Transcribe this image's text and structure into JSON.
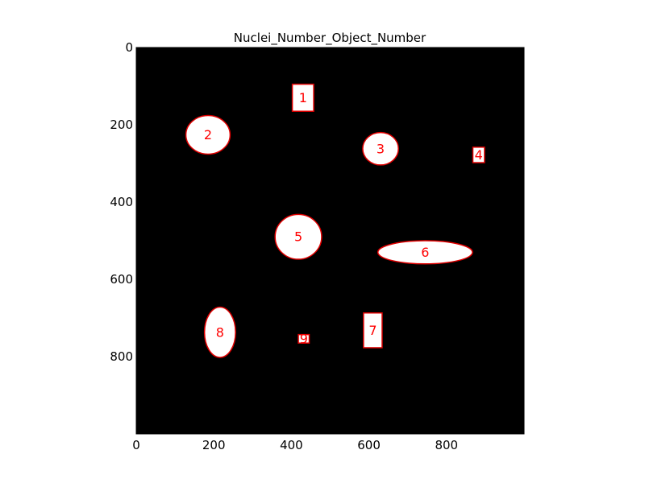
{
  "chart_data": {
    "type": "labeled-objects-image",
    "title": "Nuclei_Number_Object_Number",
    "xlim": [
      0,
      1000
    ],
    "ylim": [
      1000,
      0
    ],
    "xticks": [
      0,
      200,
      400,
      600,
      800
    ],
    "yticks": [
      0,
      200,
      400,
      600,
      800
    ],
    "grid": false,
    "background_color": "#000000",
    "object_fill": "#ffffff",
    "outline_color": "#e00000",
    "label_color": "#ff0000",
    "objects": [
      {
        "label": "1",
        "shape": "rect",
        "cx": 430,
        "cy": 130,
        "w": 55,
        "h": 70
      },
      {
        "label": "2",
        "shape": "ellipse",
        "cx": 185,
        "cy": 226,
        "rx": 57,
        "ry": 50
      },
      {
        "label": "3",
        "shape": "ellipse",
        "cx": 630,
        "cy": 262,
        "rx": 46,
        "ry": 42
      },
      {
        "label": "4",
        "shape": "rect",
        "cx": 883,
        "cy": 278,
        "w": 30,
        "h": 40
      },
      {
        "label": "5",
        "shape": "ellipse",
        "cx": 418,
        "cy": 490,
        "rx": 60,
        "ry": 58
      },
      {
        "label": "6",
        "shape": "ellipse",
        "cx": 745,
        "cy": 530,
        "rx": 122,
        "ry": 30
      },
      {
        "label": "7",
        "shape": "rect",
        "cx": 610,
        "cy": 732,
        "w": 48,
        "h": 90
      },
      {
        "label": "8",
        "shape": "ellipse",
        "cx": 216,
        "cy": 737,
        "rx": 40,
        "ry": 65
      },
      {
        "label": "9",
        "shape": "rect",
        "cx": 432,
        "cy": 754,
        "w": 28,
        "h": 22
      }
    ]
  }
}
